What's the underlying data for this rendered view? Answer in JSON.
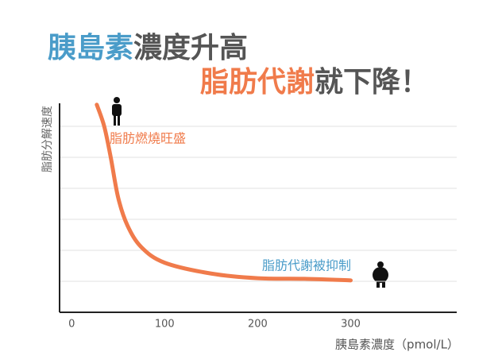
{
  "chart_data": {
    "type": "line",
    "title_line1": [
      {
        "text": "胰島素",
        "color": "#4a9cc9"
      },
      {
        "text": "濃度升高",
        "color": "#555555"
      }
    ],
    "title_line2": [
      {
        "text": "脂肪代謝",
        "color": "#f07b4b"
      },
      {
        "text": "就下降！",
        "color": "#555555"
      }
    ],
    "x_label": "胰島素濃度（pmol/L）",
    "y_label": "脂肪分解速度",
    "annotations": [
      {
        "text": "脂肪燃燒旺盛",
        "color": "#f07b4b"
      },
      {
        "text": "脂肪代謝被抑制",
        "color": "#4a9cc9"
      }
    ],
    "x": [
      27,
      35,
      42,
      50,
      60,
      75,
      100,
      150,
      200,
      250,
      300
    ],
    "series": [
      {
        "color": "#f07b4b",
        "values": [
          6.7,
          6.0,
          5.0,
          3.7,
          2.8,
          2.1,
          1.6,
          1.25,
          1.1,
          1.08,
          1.03
        ]
      }
    ],
    "xlim": [
      -13,
      414
    ],
    "ylim": [
      0,
      7
    ],
    "xticks": [
      0,
      100,
      200,
      300
    ],
    "ygrid": [
      1,
      2,
      3,
      4,
      5,
      6
    ],
    "grid": true
  }
}
